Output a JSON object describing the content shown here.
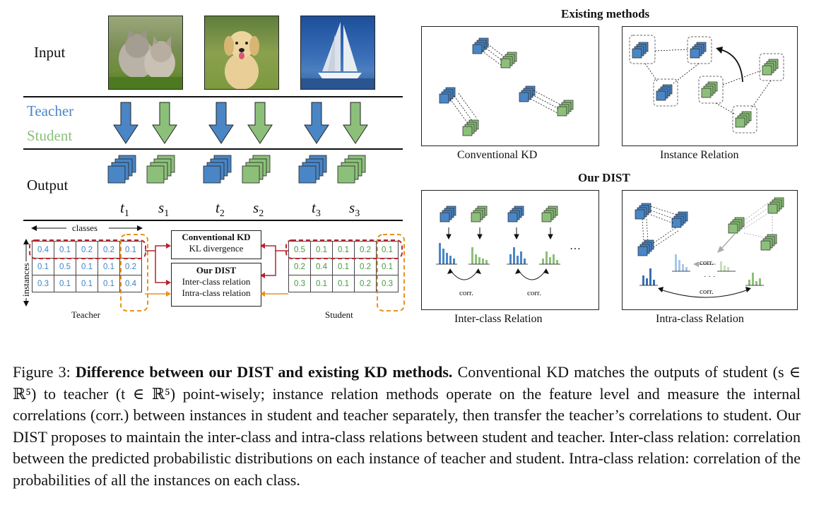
{
  "left": {
    "input_label": "Input",
    "teacher_label": "Teacher",
    "student_label": "Student",
    "output_label": "Output",
    "output_symbols": [
      {
        "base": "t",
        "sub": "1"
      },
      {
        "base": "s",
        "sub": "1"
      },
      {
        "base": "t",
        "sub": "2"
      },
      {
        "base": "s",
        "sub": "2"
      },
      {
        "base": "t",
        "sub": "3"
      },
      {
        "base": "s",
        "sub": "3"
      }
    ],
    "classes_label": "classes",
    "instances_label": "instances",
    "teacher_table_label": "Teacher",
    "student_table_label": "Student",
    "teacher_table": [
      [
        "0.4",
        "0.1",
        "0.2",
        "0.2",
        "0.1"
      ],
      [
        "0.1",
        "0.5",
        "0.1",
        "0.1",
        "0.2"
      ],
      [
        "0.3",
        "0.1",
        "0.1",
        "0.1",
        "0.4"
      ]
    ],
    "student_table": [
      [
        "0.5",
        "0.1",
        "0.1",
        "0.2",
        "0.1"
      ],
      [
        "0.2",
        "0.4",
        "0.1",
        "0.2",
        "0.1"
      ],
      [
        "0.3",
        "0.1",
        "0.1",
        "0.2",
        "0.3"
      ]
    ],
    "conv_kd_title": "Conventional KD",
    "conv_kd_sub": "KL divergence",
    "dist_title": "Our DIST",
    "dist_line1": "Inter-class relation",
    "dist_line2": "Intra-class relation"
  },
  "right": {
    "existing_title": "Existing methods",
    "our_title": "Our DIST",
    "panels": {
      "conventional_kd": "Conventional KD",
      "instance_relation": "Instance Relation",
      "inter_class": "Inter-class Relation",
      "intra_class": "Intra-class Relation"
    },
    "corr_label": "corr.",
    "ellipsis": "…",
    "ellipsis_dots": "· · ·"
  },
  "caption": {
    "prefix": "Figure 3: ",
    "bold": "Difference between our DIST and existing KD methods.",
    "text": " Conventional KD matches the outputs of student (s ∈ ℝ⁵) to teacher (t ∈ ℝ⁵) point-wisely; instance relation methods operate on the feature level and measure the internal correlations (corr.) between instances in student and teacher separately, then transfer the teacher’s correlations to student. Our DIST proposes to maintain the inter-class and intra-class relations between student and teacher. Inter-class relation: correlation between the predicted probabilistic distributions on each instance of teacher and student. Intra-class relation: correlation of the probabilities of all the instances on each class."
  },
  "colors": {
    "teacher": "#4a86c5",
    "student": "#8cc07a",
    "red_arrow": "#b3262f",
    "orange": "#e8921e",
    "red_dash": "#c0272d"
  }
}
